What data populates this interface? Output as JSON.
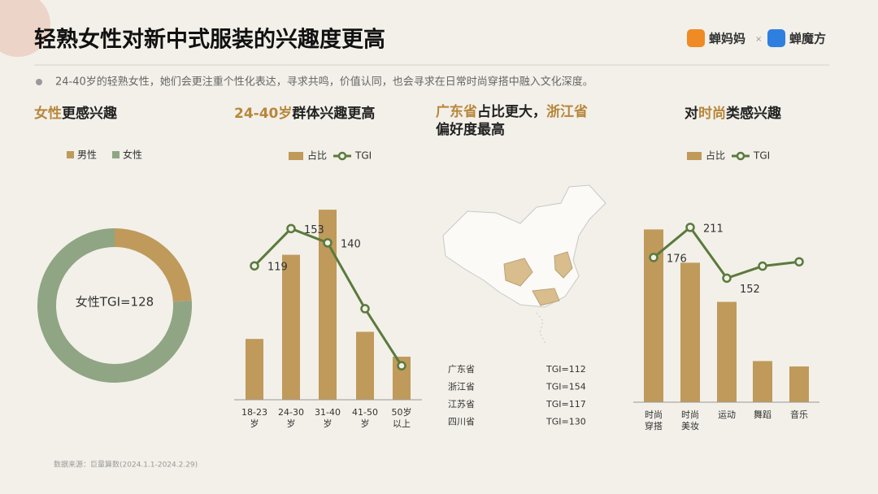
{
  "header": {
    "title": "轻熟女性对新中式服装的兴趣度更高",
    "brand_1": "蝉妈妈",
    "separator": "×",
    "brand_2": "蝉魔方"
  },
  "bullet": "24-40岁的轻熟女性，她们会更注重个性化表达，寻求共鸣，价值认同，也会寻求在日常时尚穿搭中融入文化深度。",
  "source": "数据来源：巨量算数(2024.1.1-2024.2.29)",
  "chart_data": [
    {
      "type": "donut",
      "title_parts": [
        "女性",
        "更感兴趣"
      ],
      "title_colors": [
        "#b8863b",
        "#222222"
      ],
      "categories": [
        "男性",
        "女性"
      ],
      "values": [
        24,
        76
      ],
      "colors": [
        "#c09a5b",
        "#8fa583"
      ],
      "center_label": "女性TGI=128"
    },
    {
      "type": "bar_line",
      "title_parts": [
        "24-40岁",
        "群体兴趣更高"
      ],
      "title_colors": [
        "#b8863b",
        "#222222"
      ],
      "categories": [
        [
          "18-23",
          "岁"
        ],
        [
          "24-30",
          "岁"
        ],
        [
          "31-40",
          "岁"
        ],
        [
          "41-50",
          "岁"
        ],
        [
          "50岁",
          "以上"
        ]
      ],
      "series": [
        {
          "name": "占比",
          "type": "bar",
          "color": "#c09a5b",
          "values": [
            12,
            28.6,
            37.5,
            13.4,
            8.5
          ]
        },
        {
          "name": "TGI",
          "type": "line",
          "axis": "y2",
          "color": "#5b7a3d",
          "values": [
            119,
            153,
            140,
            80,
            28
          ],
          "value_labels": [
            "119",
            "153",
            "140",
            null,
            null
          ]
        }
      ],
      "ylim": [
        0,
        42
      ],
      "y2lim": [
        -3,
        191
      ]
    },
    {
      "type": "bar_line",
      "title_parts": [
        "对",
        "时尚",
        "类感兴趣"
      ],
      "title_colors": [
        "#222222",
        "#b8863b",
        "#222222"
      ],
      "categories": [
        [
          "时尚",
          "穿搭"
        ],
        [
          "时尚",
          "美妆"
        ],
        [
          "运动"
        ],
        [
          "舞蹈"
        ],
        [
          "音乐"
        ]
      ],
      "series": [
        {
          "name": "占比",
          "type": "bar",
          "color": "#c09a5b",
          "values": [
            35.3,
            28.5,
            20.5,
            8.4,
            7.3
          ]
        },
        {
          "name": "TGI",
          "type": "line",
          "axis": "y2",
          "color": "#5b7a3d",
          "values": [
            176,
            211,
            152,
            166,
            171
          ],
          "value_labels": [
            "176",
            "211",
            "152",
            null,
            null
          ]
        }
      ],
      "ylim": [
        0,
        44
      ],
      "y2lim": [
        8,
        258
      ]
    }
  ],
  "map_panel": {
    "title_lines": [
      [
        "广东省",
        "占比更大，",
        "浙江省"
      ],
      [
        "偏好度最高"
      ]
    ],
    "title_colors": [
      [
        "#b8863b",
        "#222222",
        "#b8863b"
      ],
      [
        "#222222"
      ]
    ],
    "rows": [
      [
        "广东省",
        "TGI=112"
      ],
      [
        "浙江省",
        "TGI=154"
      ],
      [
        "江苏省",
        "TGI=117"
      ],
      [
        "四川省",
        "TGI=130"
      ]
    ]
  }
}
